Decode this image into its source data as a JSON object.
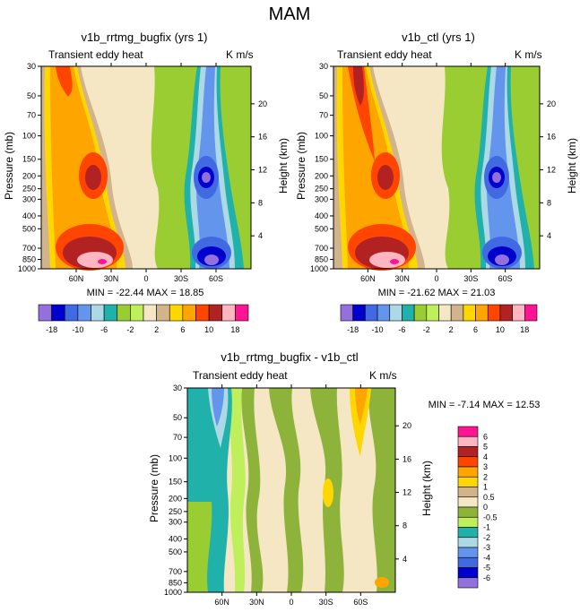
{
  "figure_title": "MAM",
  "chart_data": [
    {
      "type": "heatmap",
      "title": "v1b_rrtmg_bugfix (yrs 1)",
      "left_label": "Transient eddy heat",
      "right_label": "K m/s",
      "xlabel": "",
      "ylabel": "Pressure (mb)",
      "ylabel_right": "Height (km)",
      "x_ticks": [
        "60N",
        "30N",
        "0",
        "30S",
        "60S"
      ],
      "y_ticks": [
        "30",
        "50",
        "70",
        "100",
        "150",
        "200",
        "250",
        "300",
        "400",
        "500",
        "700",
        "850",
        "1000"
      ],
      "y_ticks_right": [
        "20",
        "16",
        "12",
        "8",
        "4"
      ],
      "stats": "MIN = -22.44  MAX =  18.85",
      "colorbar_ticks": [
        "-18",
        "-10",
        "-6",
        "-2",
        "2",
        "6",
        "10",
        "18"
      ]
    },
    {
      "type": "heatmap",
      "title": "v1b_ctl (yrs 1)",
      "left_label": "Transient eddy heat",
      "right_label": "K m/s",
      "xlabel": "",
      "ylabel": "Pressure (mb)",
      "ylabel_right": "Height (km)",
      "x_ticks": [
        "60N",
        "30N",
        "0",
        "30S",
        "60S"
      ],
      "y_ticks": [
        "30",
        "50",
        "70",
        "100",
        "150",
        "200",
        "250",
        "300",
        "400",
        "500",
        "700",
        "850",
        "1000"
      ],
      "y_ticks_right": [
        "20",
        "16",
        "12",
        "8",
        "4"
      ],
      "stats": "MIN = -21.62  MAX =  21.03",
      "colorbar_ticks": [
        "-18",
        "-10",
        "-6",
        "-2",
        "2",
        "6",
        "10",
        "18"
      ]
    },
    {
      "type": "heatmap",
      "title": "v1b_rrtmg_bugfix - v1b_ctl",
      "left_label": "Transient eddy heat",
      "right_label": "K m/s",
      "xlabel": "",
      "ylabel": "Pressure (mb)",
      "ylabel_right": "Height (km)",
      "x_ticks": [
        "60N",
        "30N",
        "0",
        "30S",
        "60S"
      ],
      "y_ticks": [
        "30",
        "50",
        "70",
        "100",
        "150",
        "200",
        "250",
        "300",
        "400",
        "500",
        "700",
        "850",
        "1000"
      ],
      "y_ticks_right": [
        "20",
        "16",
        "12",
        "8",
        "4"
      ],
      "stats": "MIN =  -7.14  MAX =  12.53",
      "colorbar_ticks": [
        "6",
        "5",
        "4",
        "3",
        "2",
        "1",
        "0.5",
        "0",
        "-0.5",
        "-1",
        "-2",
        "-3",
        "-4",
        "-5",
        "-6"
      ]
    }
  ],
  "palettes": {
    "main": [
      "#9370db",
      "#0000cd",
      "#4169e1",
      "#6495ed",
      "#add8e6",
      "#20b2aa",
      "#9acd32",
      "#bfef5a",
      "#f5e6c4",
      "#d2b48c",
      "#ffd700",
      "#ffa500",
      "#ff4500",
      "#b22222",
      "#ffb6c1",
      "#ff1493"
    ],
    "diff": [
      "#ff1493",
      "#ffb6c1",
      "#b22222",
      "#ff4500",
      "#ffa500",
      "#ffd700",
      "#d2b48c",
      "#f5e6c4",
      "#8db33b",
      "#bfef5a",
      "#20b2aa",
      "#add8e6",
      "#6495ed",
      "#4169e1",
      "#0000cd",
      "#9370db"
    ]
  }
}
